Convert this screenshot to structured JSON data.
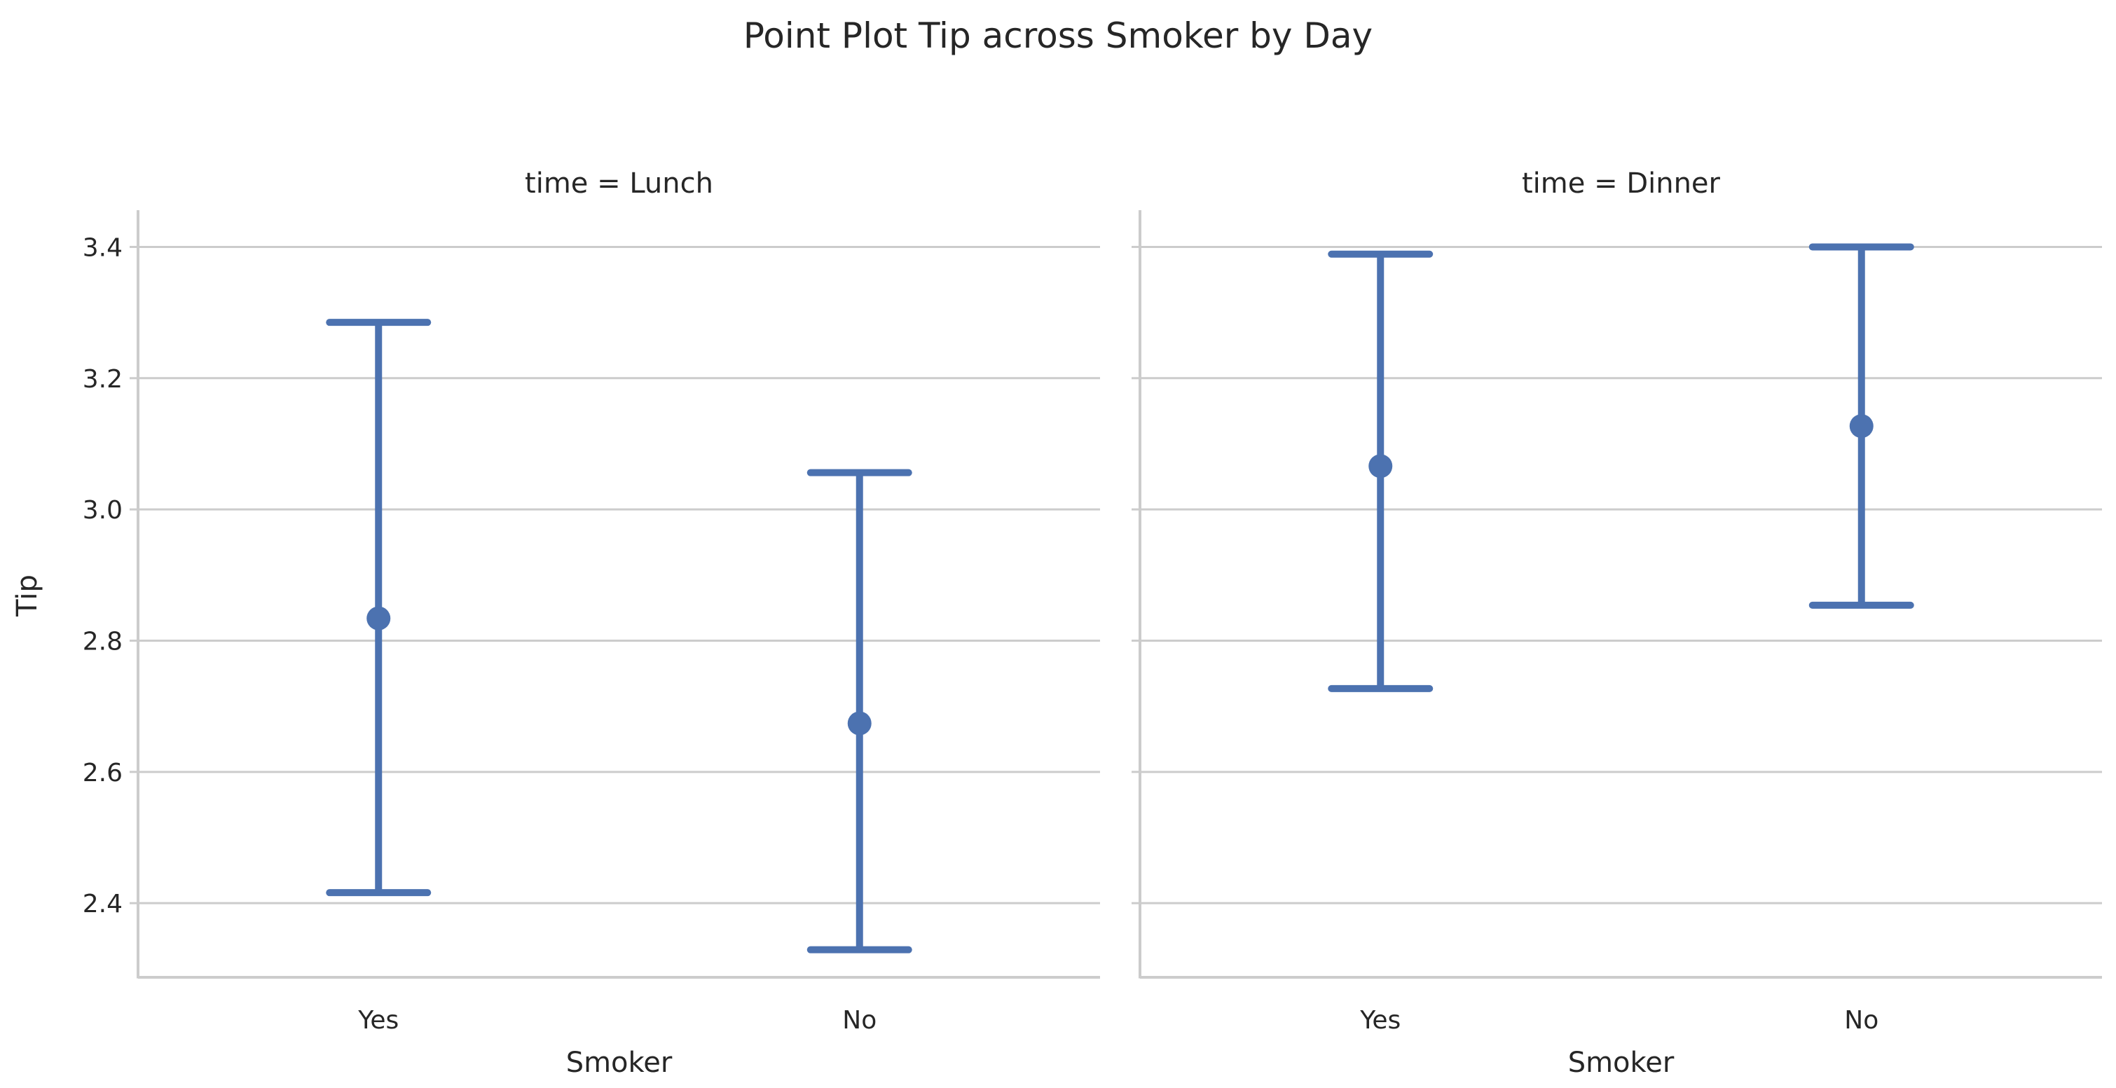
{
  "chart_data": {
    "type": "scatter",
    "title": "Point Plot Tip across Smoker by Day",
    "ylabel": "Tip",
    "ylim": [
      2.287,
      3.456
    ],
    "yticks": [
      2.4,
      2.6,
      2.8,
      3.0,
      3.2,
      3.4
    ],
    "ytick_labels": [
      "2.4",
      "2.6",
      "2.8",
      "3.0",
      "3.2",
      "3.4"
    ],
    "grid": "horizontal",
    "color": "#4c72b0",
    "panels": [
      {
        "title": "time = Lunch",
        "xlabel": "Smoker",
        "categories": [
          "Yes",
          "No"
        ],
        "values": [
          2.834,
          2.674
        ],
        "ci_low": [
          2.416,
          2.329
        ],
        "ci_high": [
          3.285,
          3.056
        ]
      },
      {
        "title": "time = Dinner",
        "xlabel": "Smoker",
        "categories": [
          "Yes",
          "No"
        ],
        "values": [
          3.066,
          3.127
        ],
        "ci_low": [
          2.727,
          2.854
        ],
        "ci_high": [
          3.389,
          3.4
        ]
      }
    ]
  }
}
